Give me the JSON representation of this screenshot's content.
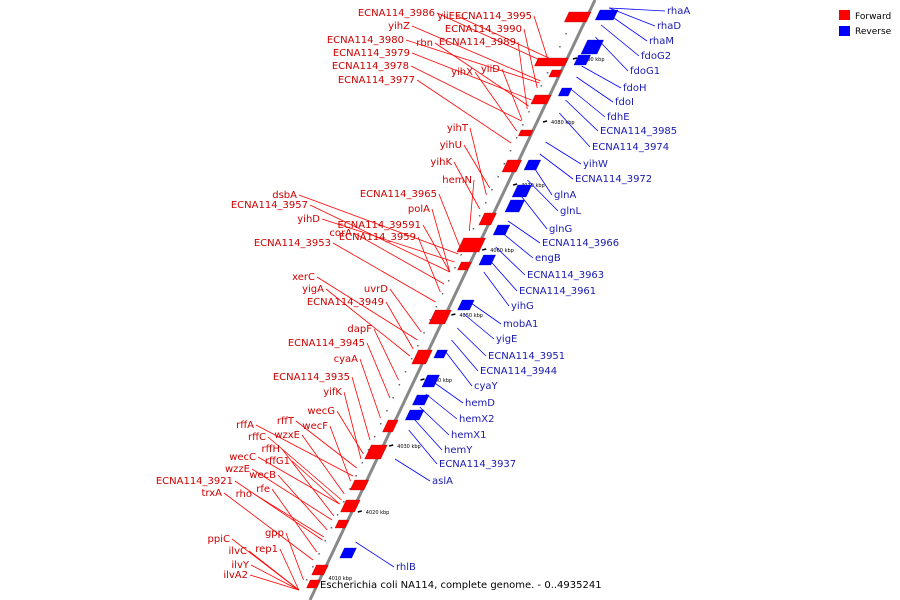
{
  "colors": {
    "forward": "#ff0000",
    "reverse": "#0000ff",
    "forward_text": "#cc0000",
    "reverse_text": "#1a1ab0",
    "axis": "#888888"
  },
  "caption": "Escherichia coli NA114, complete genome. - 0..4935241",
  "legend": [
    {
      "name": "Forward",
      "color": "#ff0000"
    },
    {
      "name": "Reverse",
      "color": "#0000ff"
    }
  ],
  "ticks": [
    "4020 kbp",
    "4030 kbp",
    "4040 kbp",
    "4050 kbp",
    "4060 kbp",
    "4070 kbp",
    "4080 kbp",
    "4090 kbp"
  ],
  "last_tick": "4010 kbp",
  "forward_genes": [
    "yiiE",
    "ECNA114_3995",
    "ECNA114_3986",
    "yihZ",
    "ECNA114_3990",
    "rbn",
    "ECNA114_3989",
    "ECNA114_3980",
    "ECNA114_3979",
    "yiiD",
    "ECNA114_3978",
    "yihX",
    "ECNA114_3977",
    "yihT",
    "yihU",
    "yihK",
    "hemN",
    "ECNA114_3965",
    "dsbA",
    "polA",
    "ECNA114_3957",
    "yihD",
    "ECNA114_39591",
    "corA",
    "ECNA114_3959",
    "ECNA114_3953",
    "xerC",
    "yigA",
    "uvrD",
    "ECNA114_3949",
    "dapF",
    "ECNA114_3945",
    "cyaA",
    "ECNA114_3935",
    "yifK",
    "wecG",
    "rffT",
    "rffA",
    "wecF",
    "wzxE",
    "rffC",
    "rffH",
    "rffG1",
    "wecC",
    "wzzE",
    "wecB",
    "ECNA114_3921",
    "rfe",
    "trxA",
    "rho",
    "gpp",
    "ppiC",
    "rep1",
    "ilvC",
    "ilvY",
    "ilvA2"
  ],
  "reverse_genes": [
    "rhaA",
    "rhaD",
    "rhaM",
    "fdoG2",
    "fdoG1",
    "fdoH",
    "fdoI",
    "fdhE",
    "ECNA114_3985",
    "ECNA114_3974",
    "yihW",
    "ECNA114_3972",
    "glnA",
    "glnL",
    "glnG",
    "ECNA114_3966",
    "engB",
    "ECNA114_3963",
    "ECNA114_3961",
    "yihG",
    "mobA1",
    "yigE",
    "ECNA114_3951",
    "ECNA114_3944",
    "cyaY",
    "hemD",
    "hemX2",
    "hemX1",
    "hemY",
    "ECNA114_3937",
    "aslA",
    "rhlB"
  ]
}
